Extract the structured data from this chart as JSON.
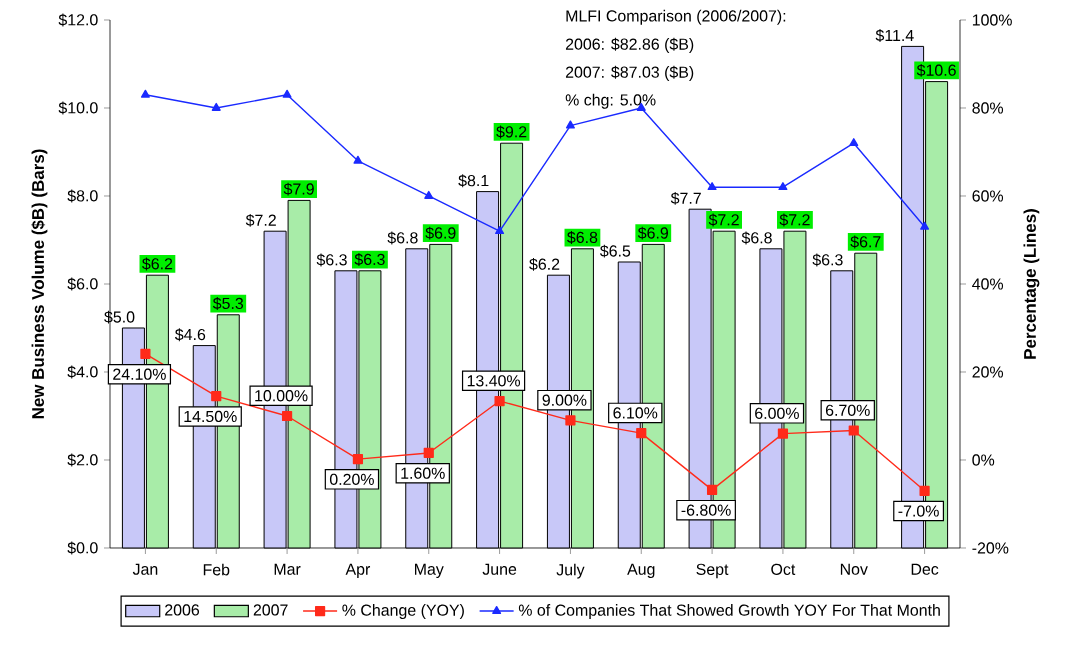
{
  "chart_data": {
    "type": "bar",
    "categories": [
      "Jan",
      "Feb",
      "Mar",
      "Apr",
      "May",
      "June",
      "July",
      "Aug",
      "Sept",
      "Oct",
      "Nov",
      "Dec"
    ],
    "ylabel": "New Business Volume ($B)  (Bars)",
    "y2label": "Percentage (Lines)",
    "ylim": [
      0,
      12
    ],
    "yticks": [
      {
        "value": 0,
        "label": "$0.0"
      },
      {
        "value": 2,
        "label": "$2.0"
      },
      {
        "value": 4,
        "label": "$4.0"
      },
      {
        "value": 6,
        "label": "$6.0"
      },
      {
        "value": 8,
        "label": "$8.0"
      },
      {
        "value": 10,
        "label": "$10.0"
      },
      {
        "value": 12,
        "label": "$12.0"
      }
    ],
    "y2lim": [
      -20,
      100
    ],
    "y2ticks": [
      {
        "value": -20,
        "label": "-20%"
      },
      {
        "value": 0,
        "label": "0%"
      },
      {
        "value": 20,
        "label": "20%"
      },
      {
        "value": 40,
        "label": "40%"
      },
      {
        "value": 60,
        "label": "60%"
      },
      {
        "value": 80,
        "label": "80%"
      },
      {
        "value": 100,
        "label": "100%"
      }
    ],
    "series": [
      {
        "name": "2006",
        "color": "#c8c8f8",
        "values": [
          5.0,
          4.6,
          7.2,
          6.3,
          6.8,
          8.1,
          6.2,
          6.5,
          7.7,
          6.8,
          6.3,
          11.4
        ],
        "value_labels": [
          "$5.0",
          "$4.6",
          "$7.2",
          "$6.3",
          "$6.8",
          "$8.1",
          "$6.2",
          "$6.5",
          "$7.7",
          "$6.8",
          "$6.3",
          "$11.4"
        ]
      },
      {
        "name": "2007",
        "color": "#a8eca8",
        "values": [
          6.2,
          5.3,
          7.9,
          6.3,
          6.9,
          9.2,
          6.8,
          6.9,
          7.2,
          7.2,
          6.7,
          10.6
        ],
        "value_labels": [
          "$6.2",
          "$5.3",
          "$7.9",
          "$6.3",
          "$6.9",
          "$9.2",
          "$6.8",
          "$6.9",
          "$7.2",
          "$7.2",
          "$6.7",
          "$10.6"
        ]
      },
      {
        "name": "% Change (YOY)",
        "type": "line",
        "axis": "y2",
        "color": "#ff2a1a",
        "marker": "square",
        "values": [
          24.1,
          14.5,
          10.0,
          0.2,
          1.6,
          13.4,
          9.0,
          6.1,
          -6.8,
          6.0,
          6.7,
          -7.0
        ],
        "value_labels": [
          "24.10%",
          "14.50%",
          "10.00%",
          "0.20%",
          "1.60%",
          "13.40%",
          "9.00%",
          "6.10%",
          "-6.80%",
          "6.00%",
          "6.70%",
          "-7.0%"
        ]
      },
      {
        "name": "% of Companies That Showed Growth YOY For That Month",
        "type": "line",
        "axis": "y2",
        "color": "#1a2aff",
        "marker": "triangle",
        "values": [
          83,
          80,
          83,
          68,
          60,
          52,
          76,
          80,
          62,
          62,
          72,
          53
        ]
      }
    ],
    "annotations": [
      "MLFI Comparison (2006/2007):",
      "2006: $82.86 ($B)",
      "2007: $87.03 ($B)",
      "% chg:  5.0%"
    ],
    "legend": "bottom"
  }
}
